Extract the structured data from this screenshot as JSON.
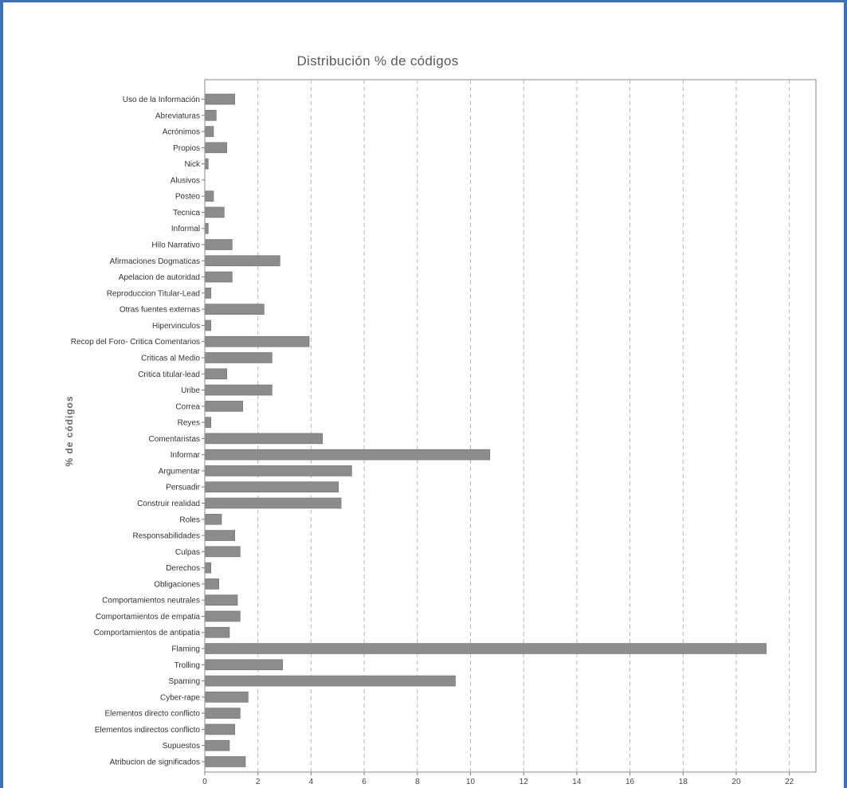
{
  "chart_data": {
    "type": "bar",
    "orientation": "horizontal",
    "title": "Distribución % de códigos",
    "xlabel": "",
    "ylabel": "% de códigos",
    "xlim": [
      0,
      23
    ],
    "xticks": [
      0,
      2,
      4,
      6,
      8,
      10,
      12,
      14,
      16,
      18,
      20,
      22
    ],
    "grid": "vertical dashed",
    "bar_color": "#8c8c8c",
    "categories": [
      "Uso de la Información",
      "Abreviaturas",
      "Acrónimos",
      "Propios",
      "Nick",
      "Alusivos",
      "Posteo",
      "Tecnica",
      "Informal",
      "Hilo Narrativo",
      "Afirmaciones Dogmaticas",
      "Apelacion de autoridad",
      "Reproduccion Titular-Lead",
      "Otras fuentes externas",
      "Hipervinculos",
      "Recop del Foro- Critica Comentarios",
      "Criticas al Medio",
      "Critica titular-lead",
      "Uribe",
      "Correa",
      "Reyes",
      "Comentaristas",
      "Informar",
      "Argumentar",
      "Persuadir",
      "Construir realidad",
      "Roles",
      "Responsabilidades",
      "Culpas",
      "Derechos",
      "Obligaciones",
      "Comportamientos neutrales",
      "Comportamientos de empatia",
      "Comportamientos de antipatia",
      "Flaming",
      "Trolling",
      "Spaming",
      "Cyber-rape",
      "Elementos directo conflicto",
      "Elementos indirectos conflicto",
      "Supuestos",
      "Atribucion de significados"
    ],
    "values": [
      1.1,
      0.4,
      0.3,
      0.8,
      0.1,
      0.0,
      0.3,
      0.7,
      0.1,
      1.0,
      2.8,
      1.0,
      0.2,
      2.2,
      0.2,
      3.9,
      2.5,
      0.8,
      2.5,
      1.4,
      0.2,
      4.4,
      10.7,
      5.5,
      5.0,
      5.1,
      0.6,
      1.1,
      1.3,
      0.2,
      0.5,
      1.2,
      1.3,
      0.9,
      21.1,
      2.9,
      9.4,
      1.6,
      1.3,
      1.1,
      0.9,
      1.5
    ]
  }
}
